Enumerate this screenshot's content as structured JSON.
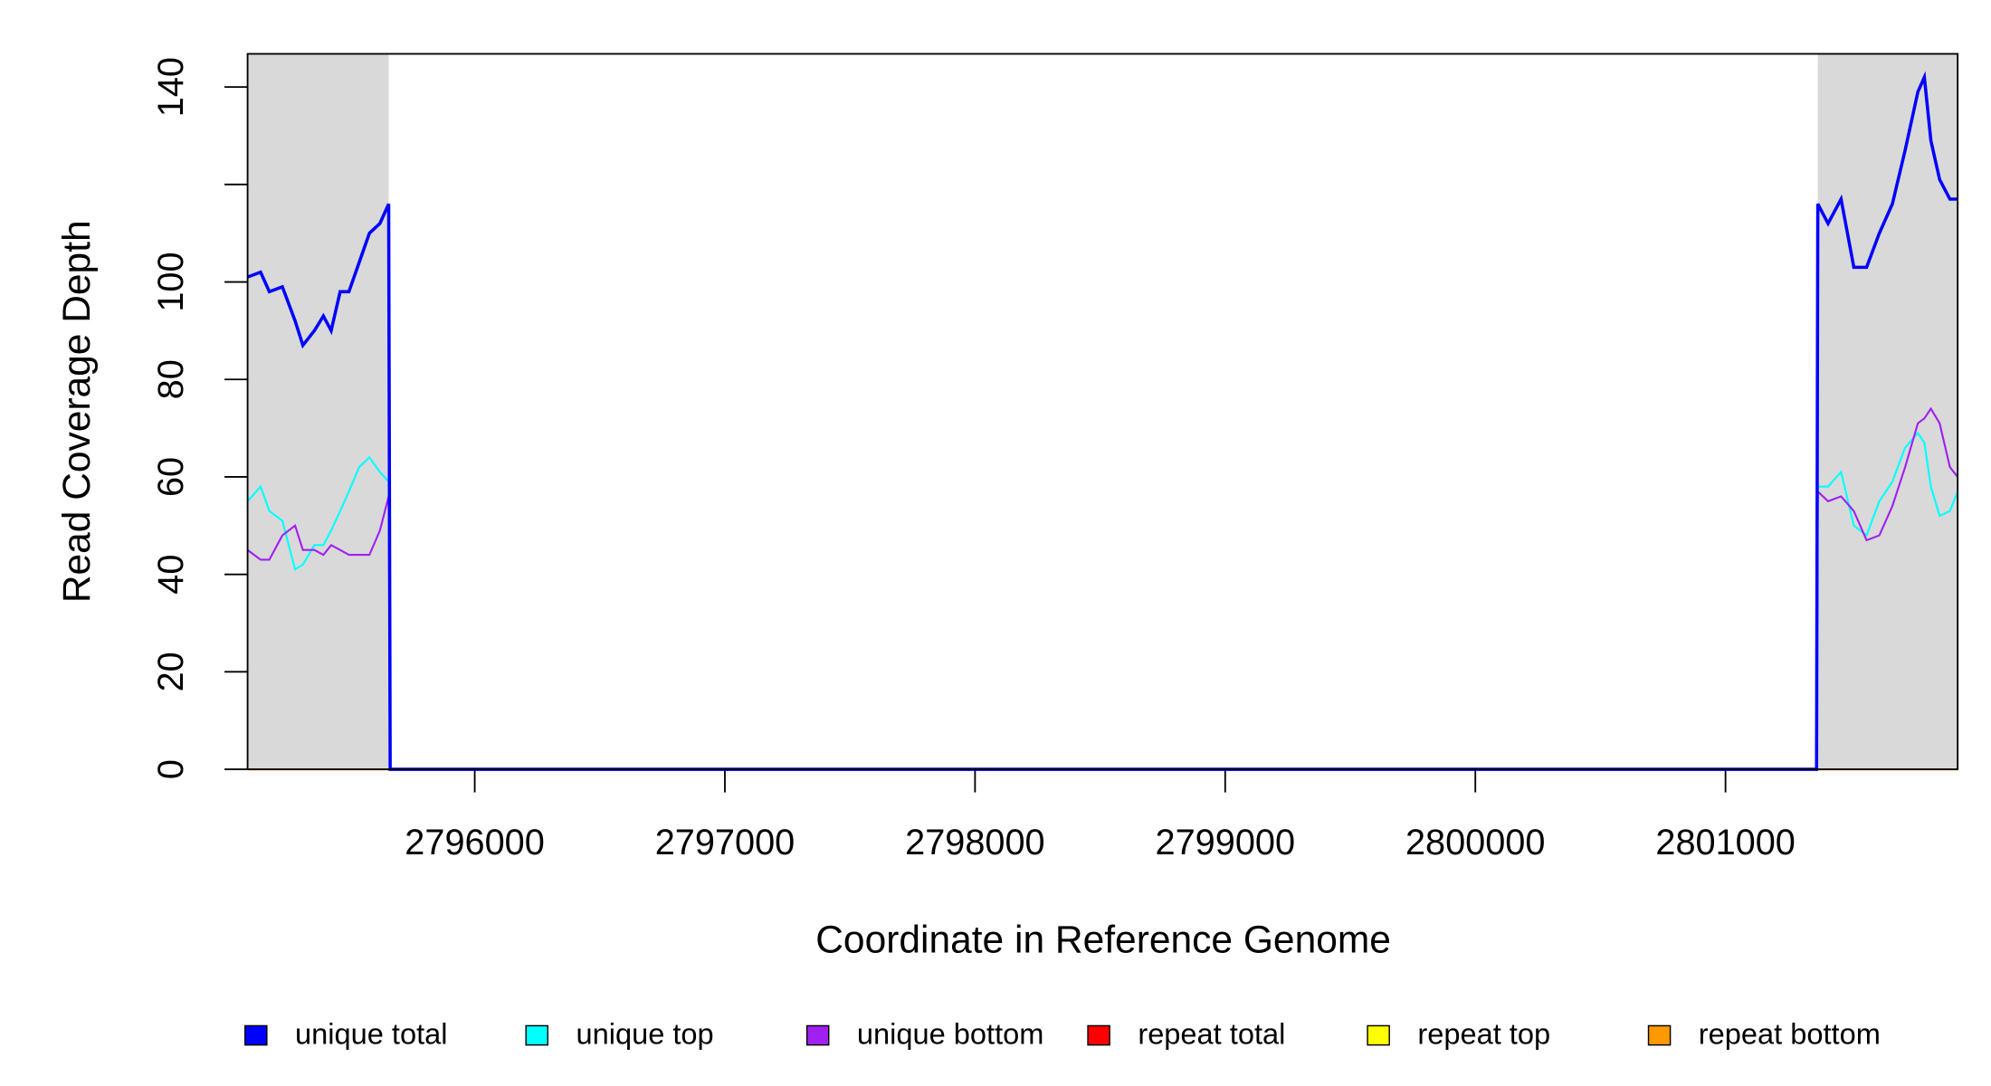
{
  "chart_data": {
    "type": "line",
    "xlabel": "Coordinate in Reference Genome",
    "ylabel": "Read Coverage Depth",
    "xlim": [
      2795092,
      2801928
    ],
    "ylim": [
      0,
      146.8
    ],
    "xticks": [
      2796000,
      2797000,
      2798000,
      2799000,
      2800000,
      2801000
    ],
    "yticks": [
      0,
      20,
      40,
      60,
      80,
      {
        "value": 120,
        "label": null
      },
      100,
      140
    ],
    "shaded": [
      [
        2795092,
        2795656
      ],
      [
        2801369,
        2801928
      ]
    ],
    "shade_color": "#d9d9d9",
    "legend": "bottom",
    "x": [
      2795092,
      2795144,
      2795179,
      2795231,
      2795282,
      2795313,
      2795359,
      2795395,
      2795426,
      2795462,
      2795497,
      2795538,
      2795579,
      2795621,
      2795656,
      2795662,
      2801364,
      2801369,
      2801410,
      2801462,
      2801513,
      2801564,
      2801615,
      2801667,
      2801718,
      2801769,
      2801795,
      2801821,
      2801856,
      2801897,
      2801928
    ],
    "series": [
      {
        "name": "repeat total",
        "color": "#ff0000",
        "values": [
          0,
          0,
          0,
          0,
          0,
          0,
          0,
          0,
          0,
          0,
          0,
          0,
          0,
          0,
          0,
          0,
          0,
          0,
          0,
          0,
          0,
          0,
          0,
          0,
          0,
          0,
          0,
          0,
          0,
          0,
          0
        ]
      },
      {
        "name": "repeat top",
        "color": "#ffff00",
        "values": [
          0,
          0,
          0,
          0,
          0,
          0,
          0,
          0,
          0,
          0,
          0,
          0,
          0,
          0,
          0,
          0,
          0,
          0,
          0,
          0,
          0,
          0,
          0,
          0,
          0,
          0,
          0,
          0,
          0,
          0,
          0
        ]
      },
      {
        "name": "repeat bottom",
        "color": "#ff9900",
        "values": [
          0,
          0,
          0,
          0,
          0,
          0,
          0,
          0,
          0,
          0,
          0,
          0,
          0,
          0,
          0,
          0,
          0,
          0,
          0,
          0,
          0,
          0,
          0,
          0,
          0,
          0,
          0,
          0,
          0,
          0,
          0
        ]
      },
      {
        "name": "unique top",
        "color": "#00ffff",
        "values": [
          55,
          58,
          53,
          51,
          41,
          42,
          46,
          46,
          49,
          53,
          57,
          62,
          64,
          61,
          59,
          0,
          0,
          58,
          58,
          61,
          50,
          48,
          55,
          59,
          66,
          69,
          67,
          58,
          52,
          53,
          57
        ]
      },
      {
        "name": "unique bottom",
        "color": "#a020f0",
        "values": [
          45,
          43,
          43,
          48,
          50,
          45,
          45,
          44,
          46,
          45,
          44,
          44,
          44,
          49,
          56,
          0,
          0,
          57,
          55,
          56,
          53,
          47,
          48,
          54,
          62,
          71,
          72,
          74,
          71,
          62,
          60
        ]
      },
      {
        "name": "unique total",
        "color": "#0000ff",
        "values": [
          101,
          102,
          98,
          99,
          92,
          87,
          90,
          93,
          90,
          98,
          98,
          104,
          110,
          112,
          116,
          0,
          0,
          116,
          112,
          117,
          103,
          103,
          110,
          116,
          127,
          139,
          142,
          129,
          121,
          117,
          117
        ]
      }
    ],
    "legend_order": [
      "unique total",
      "unique top",
      "unique bottom",
      "repeat total",
      "repeat top",
      "repeat bottom"
    ]
  }
}
